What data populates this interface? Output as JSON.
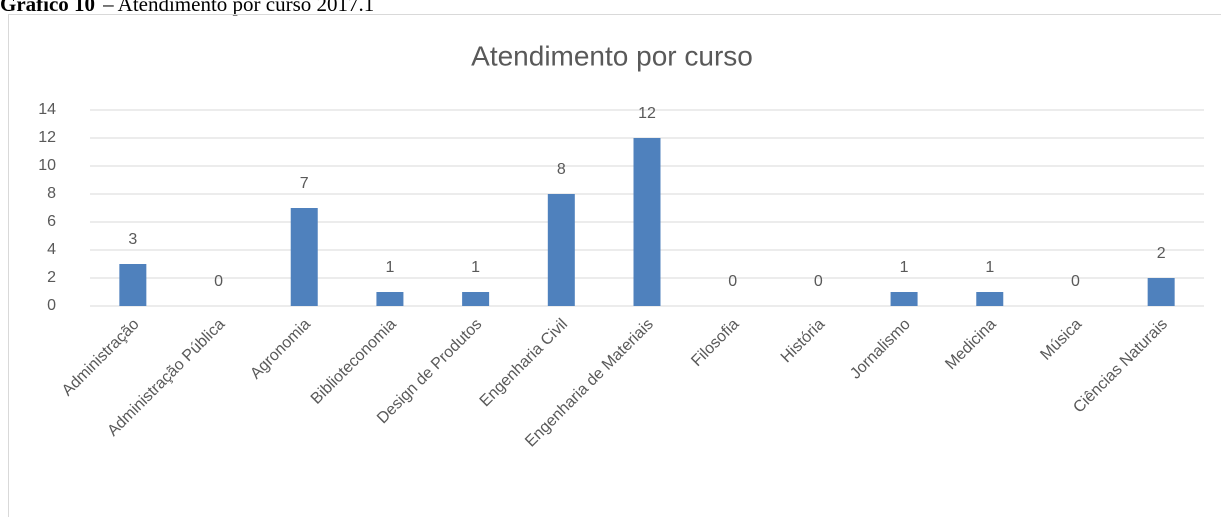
{
  "caption": {
    "label": "Gráfico 10",
    "text": "– Atendimento por curso 2017.1"
  },
  "chart_data": {
    "type": "bar",
    "title": "Atendimento por curso",
    "categories": [
      "Administração",
      "Administração Pública",
      "Agronomia",
      "Biblioteconomia",
      "Design de Produtos",
      "Engenharia Civil",
      "Engenharia de Materiais",
      "Filosofia",
      "História",
      "Jornalismo",
      "Medicina",
      "Música",
      "Ciências Naturais"
    ],
    "values": [
      3,
      0,
      7,
      1,
      1,
      8,
      12,
      0,
      0,
      1,
      1,
      0,
      2
    ],
    "color": "#4f81bd",
    "ylim": [
      0,
      14
    ],
    "yticks": [
      0,
      2,
      4,
      6,
      8,
      10,
      12,
      14
    ],
    "grid": true
  }
}
